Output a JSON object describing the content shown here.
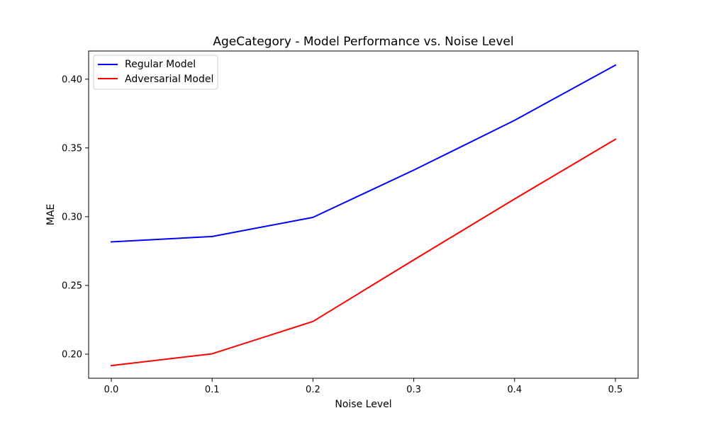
{
  "chart_data": {
    "type": "line",
    "title": "AgeCategory - Model Performance vs. Noise Level",
    "xlabel": "Noise Level",
    "ylabel": "MAE",
    "x": [
      0.0,
      0.1,
      0.2,
      0.3,
      0.4,
      0.5
    ],
    "xlim": [
      -0.0225,
      0.5225
    ],
    "ylim": [
      0.1825,
      0.4205
    ],
    "xticks": [
      "0.0",
      "0.1",
      "0.2",
      "0.3",
      "0.4",
      "0.5"
    ],
    "yticks": [
      "0.20",
      "0.25",
      "0.30",
      "0.35",
      "0.40"
    ],
    "grid": false,
    "legend_position": "upper-left",
    "series": [
      {
        "name": "Regular Model",
        "color": "#0000ff",
        "values": [
          0.2817,
          0.2856,
          0.2995,
          0.3339,
          0.3701,
          0.4102
        ]
      },
      {
        "name": "Adversarial Model",
        "color": "#ff0000",
        "values": [
          0.1917,
          0.2003,
          0.2238,
          0.2686,
          0.3129,
          0.3563
        ]
      }
    ]
  }
}
